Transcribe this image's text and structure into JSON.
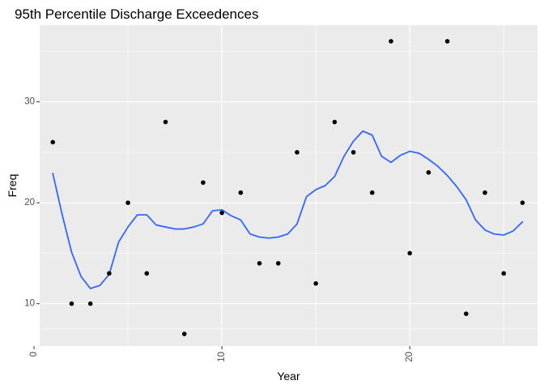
{
  "chart_data": {
    "type": "scatter",
    "title": "95th Percentile Discharge Exceedences",
    "xlabel": "Year",
    "ylabel": "Freq",
    "xlim": [
      0.3,
      26.8
    ],
    "ylim": [
      5.8,
      37.6
    ],
    "x_ticks": [
      0,
      10,
      20
    ],
    "y_ticks": [
      10,
      20,
      30
    ],
    "grid": true,
    "legend": "none",
    "colors": {
      "panel": "#ebebeb",
      "grid_major": "#ffffff",
      "points": "#000000",
      "smooth": "#3366ff"
    },
    "points": [
      {
        "x": 1,
        "y": 26
      },
      {
        "x": 2,
        "y": 10
      },
      {
        "x": 3,
        "y": 10
      },
      {
        "x": 4,
        "y": 13
      },
      {
        "x": 5,
        "y": 20
      },
      {
        "x": 6,
        "y": 13
      },
      {
        "x": 7,
        "y": 28
      },
      {
        "x": 8,
        "y": 7
      },
      {
        "x": 9,
        "y": 22
      },
      {
        "x": 10,
        "y": 19
      },
      {
        "x": 11,
        "y": 21
      },
      {
        "x": 12,
        "y": 14
      },
      {
        "x": 13,
        "y": 14
      },
      {
        "x": 14,
        "y": 25
      },
      {
        "x": 15,
        "y": 12
      },
      {
        "x": 16,
        "y": 28
      },
      {
        "x": 17,
        "y": 25
      },
      {
        "x": 18,
        "y": 21
      },
      {
        "x": 19,
        "y": 36
      },
      {
        "x": 20,
        "y": 15
      },
      {
        "x": 21,
        "y": 23
      },
      {
        "x": 22,
        "y": 36
      },
      {
        "x": 23,
        "y": 9
      },
      {
        "x": 24,
        "y": 21
      },
      {
        "x": 25,
        "y": 13
      },
      {
        "x": 26,
        "y": 20
      }
    ],
    "smooth_line": {
      "x": [
        1,
        1.5,
        2,
        2.5,
        3,
        3.5,
        4,
        4.5,
        5,
        5.5,
        6,
        6.5,
        7,
        7.5,
        8,
        8.5,
        9,
        9.5,
        10,
        10.5,
        11,
        11.5,
        12,
        12.5,
        13,
        13.5,
        14,
        14.5,
        15,
        15.5,
        16,
        16.5,
        17,
        17.5,
        18,
        18.5,
        19,
        19.5,
        20,
        20.5,
        21,
        21.5,
        22,
        22.5,
        23,
        23.5,
        24,
        24.5,
        25,
        25.5,
        26
      ],
      "y": [
        22.9,
        18.8,
        15.1,
        12.7,
        11.5,
        11.8,
        12.9,
        16.1,
        17.6,
        18.8,
        18.8,
        17.8,
        17.6,
        17.4,
        17.4,
        17.6,
        17.9,
        19.2,
        19.3,
        18.7,
        18.3,
        16.9,
        16.6,
        16.5,
        16.6,
        16.9,
        17.9,
        20.6,
        21.3,
        21.7,
        22.6,
        24.6,
        26.1,
        27.1,
        26.7,
        24.6,
        24.0,
        24.7,
        25.1,
        24.9,
        24.3,
        23.6,
        22.7,
        21.6,
        20.3,
        18.3,
        17.3,
        16.9,
        16.8,
        17.2,
        18.1
      ]
    }
  }
}
